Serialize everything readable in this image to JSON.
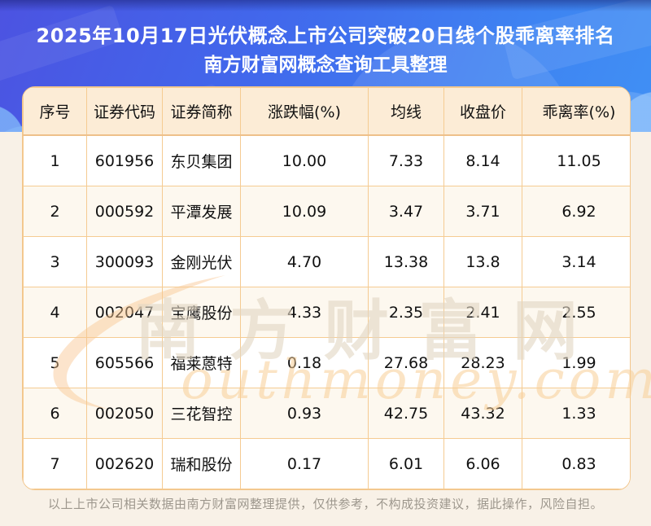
{
  "chart_data": {
    "type": "table",
    "title": "2025年10月17日光伏概念上市公司突破20日线个股乖离率排名",
    "subtitle": "南方财富网概念查询工具整理",
    "columns": [
      "序号",
      "证券代码",
      "证券简称",
      "涨跌幅(%)",
      "均线",
      "收盘价",
      "乖离率(%)"
    ],
    "rows": [
      [
        "1",
        "601956",
        "东贝集团",
        "10.00",
        "7.33",
        "8.14",
        "11.05"
      ],
      [
        "2",
        "000592",
        "平潭发展",
        "10.09",
        "3.47",
        "3.71",
        "6.92"
      ],
      [
        "3",
        "300093",
        "金刚光伏",
        "4.70",
        "13.38",
        "13.8",
        "3.14"
      ],
      [
        "4",
        "002047",
        "宝鹰股份",
        "4.33",
        "2.35",
        "2.41",
        "2.55"
      ],
      [
        "5",
        "605566",
        "福莱蒽特",
        "0.18",
        "27.68",
        "28.23",
        "1.99"
      ],
      [
        "6",
        "002050",
        "三花智控",
        "0.93",
        "42.75",
        "43.32",
        "1.33"
      ],
      [
        "7",
        "002620",
        "瑞和股份",
        "0.17",
        "6.01",
        "6.06",
        "0.83"
      ]
    ],
    "layout_hints": {
      "header_position": "top-banner",
      "grid": "on",
      "row_striping": true
    }
  },
  "watermark": {
    "cn_text": "南方财富网",
    "en_text": "outhmoney.com"
  },
  "footer": {
    "disclaimer": "以上上市公司相关数据由南方财富网整理提供，仅供参考，不构成投资建议，据此操作，风险自担。"
  },
  "colors": {
    "hero_gradient_start": "#4c53e1",
    "hero_gradient_end": "#4190f4",
    "table_header_bg": "#fcecd6",
    "row_even_bg": "#fdf8ef",
    "table_border": "#f5cb92",
    "page_bg": "#f8f1e7",
    "title_text": "#ffffff",
    "cell_text": "#111111",
    "footer_text": "#9d978d",
    "watermark_orange": "#f8cd96"
  }
}
